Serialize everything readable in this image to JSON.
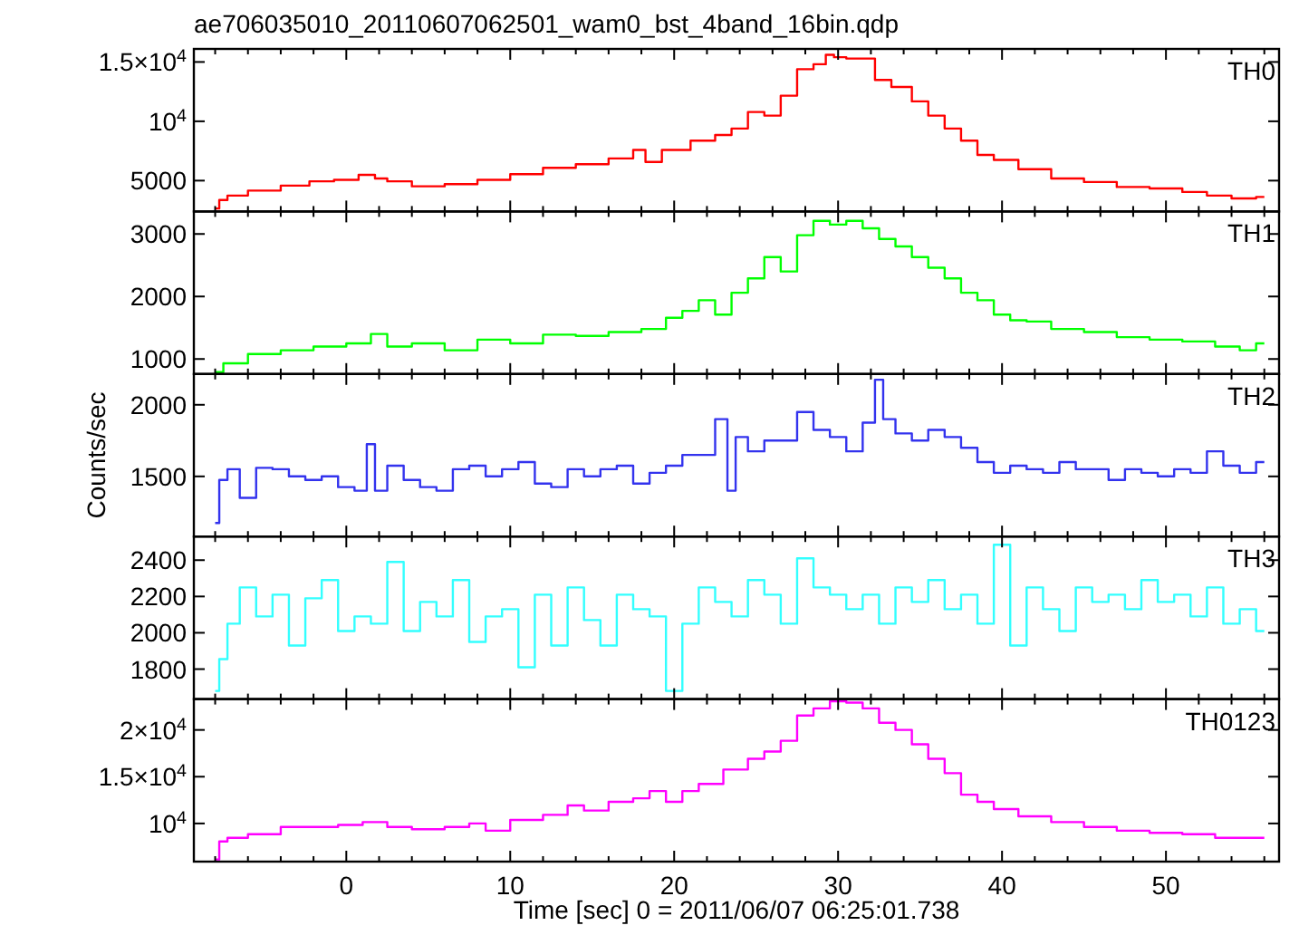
{
  "chart_data": [
    {
      "type": "step",
      "title": "ae706035010_20110607062501_wam0_bst_4band_16bin.qdp",
      "xlim": [
        -9.3,
        56.9
      ],
      "ylim": [
        2400,
        16100
      ],
      "yticks": [
        5000,
        {
          "value": 10000,
          "label": "10$^{4}$"
        },
        {
          "value": 15000,
          "label": "1.5×10$^{4}$"
        }
      ],
      "tick_labels": "y",
      "xticks": [
        {
          "value": -8,
          "label": null
        },
        {
          "value": -6,
          "label": null
        },
        {
          "value": -4,
          "label": null
        },
        {
          "value": -2,
          "label": null
        },
        {
          "value": 0,
          "label": null
        },
        {
          "value": 2,
          "label": null
        },
        {
          "value": 4,
          "label": null
        },
        {
          "value": 6,
          "label": null
        },
        {
          "value": 8,
          "label": null
        },
        {
          "value": 10,
          "label": null
        },
        {
          "value": 12,
          "label": null
        },
        {
          "value": 14,
          "label": null
        },
        {
          "value": 16,
          "label": null
        },
        {
          "value": 18,
          "label": null
        },
        {
          "value": 20,
          "label": null
        },
        {
          "value": 22,
          "label": null
        },
        {
          "value": 24,
          "label": null
        },
        {
          "value": 26,
          "label": null
        },
        {
          "value": 28,
          "label": null
        },
        {
          "value": 30,
          "label": null
        },
        {
          "value": 32,
          "label": null
        },
        {
          "value": 34,
          "label": null
        },
        {
          "value": 36,
          "label": null
        },
        {
          "value": 38,
          "label": null
        },
        {
          "value": 40,
          "label": null
        },
        {
          "value": 42,
          "label": null
        },
        {
          "value": 44,
          "label": null
        },
        {
          "value": 46,
          "label": null
        },
        {
          "value": 48,
          "label": null
        },
        {
          "value": 50,
          "label": null
        },
        {
          "value": 52,
          "label": null
        },
        {
          "value": 54,
          "label": null
        },
        {
          "value": 56,
          "label": null
        }
      ],
      "series": [
        {
          "name": "TH0",
          "color": "#ff0000",
          "x": [
            -8,
            -7.5,
            -7,
            -5,
            -3,
            -1.5,
            0,
            1.5,
            2,
            3,
            5,
            7,
            9,
            11,
            13,
            15,
            17,
            18,
            18.5,
            20,
            22,
            23,
            24,
            25,
            26,
            27,
            28,
            29,
            29.5,
            30,
            31,
            32,
            32.5,
            34,
            35,
            36,
            37,
            38,
            39,
            40,
            42,
            44,
            46,
            48,
            50,
            52,
            53,
            55,
            56
          ],
          "values": [
            2650,
            3370,
            3740,
            4160,
            4580,
            4940,
            5060,
            5480,
            5180,
            4940,
            4520,
            4700,
            5060,
            5540,
            6080,
            6380,
            6870,
            7590,
            6570,
            7590,
            8370,
            8850,
            9390,
            10780,
            10480,
            12160,
            14390,
            14810,
            15600,
            15400,
            15290,
            15290,
            13490,
            12890,
            11680,
            10480,
            9390,
            8370,
            7170,
            6750,
            5960,
            5180,
            4880,
            4460,
            4340,
            4040,
            3740,
            3500,
            3620
          ]
        }
      ]
    },
    {
      "type": "step",
      "xlim": [
        -9.3,
        56.9
      ],
      "ylim": [
        760,
        3360
      ],
      "yticks": [
        1000,
        2000,
        3000
      ],
      "tick_labels": "y",
      "xticks": [
        {
          "value": -8,
          "label": null
        },
        {
          "value": -6,
          "label": null
        },
        {
          "value": -4,
          "label": null
        },
        {
          "value": -2,
          "label": null
        },
        {
          "value": 0,
          "label": null
        },
        {
          "value": 2,
          "label": null
        },
        {
          "value": 4,
          "label": null
        },
        {
          "value": 6,
          "label": null
        },
        {
          "value": 8,
          "label": null
        },
        {
          "value": 10,
          "label": null
        },
        {
          "value": 12,
          "label": null
        },
        {
          "value": 14,
          "label": null
        },
        {
          "value": 16,
          "label": null
        },
        {
          "value": 18,
          "label": null
        },
        {
          "value": 20,
          "label": null
        },
        {
          "value": 22,
          "label": null
        },
        {
          "value": 24,
          "label": null
        },
        {
          "value": 26,
          "label": null
        },
        {
          "value": 28,
          "label": null
        },
        {
          "value": 30,
          "label": null
        },
        {
          "value": 32,
          "label": null
        },
        {
          "value": 34,
          "label": null
        },
        {
          "value": 36,
          "label": null
        },
        {
          "value": 38,
          "label": null
        },
        {
          "value": 40,
          "label": null
        },
        {
          "value": 42,
          "label": null
        },
        {
          "value": 44,
          "label": null
        },
        {
          "value": 46,
          "label": null
        },
        {
          "value": 48,
          "label": null
        },
        {
          "value": 50,
          "label": null
        },
        {
          "value": 52,
          "label": null
        },
        {
          "value": 54,
          "label": null
        },
        {
          "value": 56,
          "label": null
        }
      ],
      "series": [
        {
          "name": "TH1",
          "color": "#00ff00",
          "x": [
            -8,
            -7,
            -5,
            -3,
            -1,
            1,
            2,
            3,
            5,
            7,
            9,
            11,
            13,
            15,
            17,
            19,
            20,
            21,
            22,
            23,
            24,
            25,
            26,
            27,
            28,
            29,
            30,
            31,
            32,
            33,
            34,
            35,
            36,
            37,
            38,
            39,
            40,
            41,
            42,
            44,
            46,
            48,
            50,
            52,
            54,
            55,
            56
          ],
          "values": [
            790,
            930,
            1080,
            1140,
            1200,
            1250,
            1400,
            1200,
            1250,
            1140,
            1310,
            1250,
            1390,
            1370,
            1430,
            1480,
            1660,
            1770,
            1940,
            1710,
            2060,
            2290,
            2630,
            2400,
            2980,
            3210,
            3150,
            3210,
            3090,
            2920,
            2800,
            2630,
            2460,
            2290,
            2060,
            1940,
            1710,
            1620,
            1600,
            1480,
            1430,
            1350,
            1310,
            1280,
            1200,
            1140,
            1250
          ]
        }
      ]
    },
    {
      "type": "step",
      "xlim": [
        -9.3,
        56.9
      ],
      "ylim": [
        1080,
        2215
      ],
      "yticks": [
        1500,
        2000
      ],
      "tick_labels": "y",
      "ylabel": "Counts/sec",
      "xticks": [
        {
          "value": -8,
          "label": null
        },
        {
          "value": -6,
          "label": null
        },
        {
          "value": -4,
          "label": null
        },
        {
          "value": -2,
          "label": null
        },
        {
          "value": 0,
          "label": null
        },
        {
          "value": 2,
          "label": null
        },
        {
          "value": 4,
          "label": null
        },
        {
          "value": 6,
          "label": null
        },
        {
          "value": 8,
          "label": null
        },
        {
          "value": 10,
          "label": null
        },
        {
          "value": 12,
          "label": null
        },
        {
          "value": 14,
          "label": null
        },
        {
          "value": 16,
          "label": null
        },
        {
          "value": 18,
          "label": null
        },
        {
          "value": 20,
          "label": null
        },
        {
          "value": 22,
          "label": null
        },
        {
          "value": 24,
          "label": null
        },
        {
          "value": 26,
          "label": null
        },
        {
          "value": 28,
          "label": null
        },
        {
          "value": 30,
          "label": null
        },
        {
          "value": 32,
          "label": null
        },
        {
          "value": 34,
          "label": null
        },
        {
          "value": 36,
          "label": null
        },
        {
          "value": 38,
          "label": null
        },
        {
          "value": 40,
          "label": null
        },
        {
          "value": 42,
          "label": null
        },
        {
          "value": 44,
          "label": null
        },
        {
          "value": 46,
          "label": null
        },
        {
          "value": 48,
          "label": null
        },
        {
          "value": 50,
          "label": null
        },
        {
          "value": 52,
          "label": null
        },
        {
          "value": 54,
          "label": null
        },
        {
          "value": 56,
          "label": null
        }
      ],
      "series": [
        {
          "name": "TH2",
          "color": "#3333ee",
          "x": [
            -8,
            -7.5,
            -7,
            -6,
            -5,
            -4,
            -3,
            -2,
            -1,
            0,
            1,
            1.5,
            2,
            3,
            4,
            5,
            6,
            7,
            8,
            9,
            10,
            11,
            12,
            13,
            14,
            15,
            16,
            17,
            18,
            19,
            20,
            21,
            22,
            23,
            23.5,
            24,
            25,
            26,
            27,
            28,
            29,
            30,
            31,
            32,
            32.5,
            33,
            34,
            35,
            36,
            37,
            38,
            39,
            40,
            41,
            42,
            43,
            44,
            45,
            46,
            47,
            48,
            49,
            50,
            51,
            52,
            53,
            54,
            55,
            56
          ],
          "values": [
            1175,
            1475,
            1550,
            1350,
            1560,
            1550,
            1500,
            1475,
            1500,
            1425,
            1400,
            1725,
            1400,
            1575,
            1475,
            1425,
            1400,
            1550,
            1575,
            1500,
            1550,
            1600,
            1450,
            1425,
            1550,
            1500,
            1550,
            1575,
            1450,
            1525,
            1575,
            1650,
            1650,
            1900,
            1400,
            1775,
            1675,
            1750,
            1750,
            1950,
            1825,
            1775,
            1675,
            1875,
            2175,
            1900,
            1800,
            1750,
            1825,
            1775,
            1700,
            1600,
            1525,
            1575,
            1550,
            1525,
            1600,
            1550,
            1550,
            1475,
            1550,
            1525,
            1500,
            1550,
            1525,
            1675,
            1575,
            1525,
            1600
          ]
        }
      ]
    },
    {
      "type": "step",
      "xlim": [
        -9.3,
        56.9
      ],
      "ylim": [
        1635,
        2530
      ],
      "yticks": [
        1800,
        2000,
        2200,
        2400
      ],
      "tick_labels": "y",
      "xticks": [
        {
          "value": -8,
          "label": null
        },
        {
          "value": -6,
          "label": null
        },
        {
          "value": -4,
          "label": null
        },
        {
          "value": -2,
          "label": null
        },
        {
          "value": 0,
          "label": null
        },
        {
          "value": 2,
          "label": null
        },
        {
          "value": 4,
          "label": null
        },
        {
          "value": 6,
          "label": null
        },
        {
          "value": 8,
          "label": null
        },
        {
          "value": 10,
          "label": null
        },
        {
          "value": 12,
          "label": null
        },
        {
          "value": 14,
          "label": null
        },
        {
          "value": 16,
          "label": null
        },
        {
          "value": 18,
          "label": null
        },
        {
          "value": 20,
          "label": null
        },
        {
          "value": 22,
          "label": null
        },
        {
          "value": 24,
          "label": null
        },
        {
          "value": 26,
          "label": null
        },
        {
          "value": 28,
          "label": null
        },
        {
          "value": 30,
          "label": null
        },
        {
          "value": 32,
          "label": null
        },
        {
          "value": 34,
          "label": null
        },
        {
          "value": 36,
          "label": null
        },
        {
          "value": 38,
          "label": null
        },
        {
          "value": 40,
          "label": null
        },
        {
          "value": 42,
          "label": null
        },
        {
          "value": 44,
          "label": null
        },
        {
          "value": 46,
          "label": null
        },
        {
          "value": 48,
          "label": null
        },
        {
          "value": 50,
          "label": null
        },
        {
          "value": 52,
          "label": null
        },
        {
          "value": 54,
          "label": null
        },
        {
          "value": 56,
          "label": null
        }
      ],
      "series": [
        {
          "name": "TH3",
          "color": "#33ffff",
          "x": [
            -8,
            -7.5,
            -7,
            -6,
            -5,
            -4,
            -3,
            -2,
            -1,
            0,
            1,
            2,
            3,
            4,
            5,
            6,
            7,
            8,
            9,
            10,
            11,
            12,
            13,
            14,
            15,
            16,
            17,
            18,
            19,
            20,
            21,
            22,
            23,
            24,
            25,
            26,
            27,
            28,
            29,
            30,
            31,
            32,
            33,
            34,
            35,
            36,
            37,
            38,
            39,
            40,
            41,
            42,
            43,
            44,
            45,
            46,
            47,
            48,
            49,
            50,
            51,
            52,
            53,
            54,
            55,
            56
          ],
          "values": [
            1680,
            1855,
            2050,
            2250,
            2090,
            2210,
            1930,
            2190,
            2290,
            2010,
            2090,
            2050,
            2390,
            2010,
            2170,
            2090,
            2290,
            1950,
            2090,
            2130,
            1810,
            2210,
            1930,
            2250,
            2070,
            1930,
            2210,
            2130,
            2090,
            1680,
            2050,
            2250,
            2170,
            2090,
            2290,
            2210,
            2050,
            2410,
            2250,
            2210,
            2130,
            2210,
            2050,
            2250,
            2170,
            2290,
            2130,
            2210,
            2050,
            2485,
            1930,
            2250,
            2130,
            2010,
            2250,
            2170,
            2210,
            2130,
            2290,
            2170,
            2210,
            2090,
            2250,
            2050,
            2130,
            2010
          ]
        }
      ]
    },
    {
      "type": "step",
      "xlabel": "Time [sec] 0 = 2011/06/07 06:25:01.738",
      "xlim": [
        -9.3,
        56.9
      ],
      "ylim": [
        5920,
        23300
      ],
      "yticks": [
        {
          "value": 10000,
          "label": "10$^{4}$"
        },
        {
          "value": 15000,
          "label": "1.5×10$^{4}$"
        },
        {
          "value": 20000,
          "label": "2×10$^{4}$"
        }
      ],
      "xticks": [
        {
          "value": -8,
          "label": null
        },
        {
          "value": -6,
          "label": null
        },
        {
          "value": -4,
          "label": null
        },
        {
          "value": -2,
          "label": null
        },
        0,
        {
          "value": 2,
          "label": null
        },
        {
          "value": 4,
          "label": null
        },
        {
          "value": 6,
          "label": null
        },
        {
          "value": 8,
          "label": null
        },
        10,
        {
          "value": 12,
          "label": null
        },
        {
          "value": 14,
          "label": null
        },
        {
          "value": 16,
          "label": null
        },
        {
          "value": 18,
          "label": null
        },
        20,
        {
          "value": 22,
          "label": null
        },
        {
          "value": 24,
          "label": null
        },
        {
          "value": 26,
          "label": null
        },
        {
          "value": 28,
          "label": null
        },
        30,
        {
          "value": 32,
          "label": null
        },
        {
          "value": 34,
          "label": null
        },
        {
          "value": 36,
          "label": null
        },
        {
          "value": 38,
          "label": null
        },
        40,
        {
          "value": 42,
          "label": null
        },
        {
          "value": 44,
          "label": null
        },
        {
          "value": 46,
          "label": null
        },
        {
          "value": 48,
          "label": null
        },
        50,
        {
          "value": 52,
          "label": null
        },
        {
          "value": 54,
          "label": null
        },
        {
          "value": 56,
          "label": null
        }
      ],
      "series": [
        {
          "name": "TH0123",
          "color": "#ff00ff",
          "x": [
            -8,
            -7.5,
            -7,
            -5,
            -3,
            -1,
            0,
            2,
            3,
            5,
            7,
            8,
            9,
            11,
            13,
            14,
            15,
            17,
            18,
            19,
            20,
            21,
            22,
            24,
            25,
            26,
            27,
            28,
            29,
            30,
            31,
            32,
            33,
            34,
            35,
            36,
            37,
            38,
            39,
            40,
            42,
            44,
            46,
            48,
            50,
            52,
            54,
            56
          ],
          "values": [
            6150,
            8080,
            8460,
            8850,
            9620,
            9620,
            9850,
            10150,
            9620,
            9380,
            9620,
            10000,
            9230,
            10380,
            10920,
            11920,
            11380,
            12310,
            12690,
            13460,
            12310,
            13460,
            14230,
            15770,
            16920,
            17690,
            18840,
            21540,
            22300,
            23070,
            22920,
            22300,
            20770,
            20000,
            18460,
            16920,
            15380,
            13080,
            12310,
            11540,
            10770,
            10150,
            9620,
            9230,
            9000,
            8850,
            8460,
            8460
          ]
        }
      ]
    }
  ]
}
